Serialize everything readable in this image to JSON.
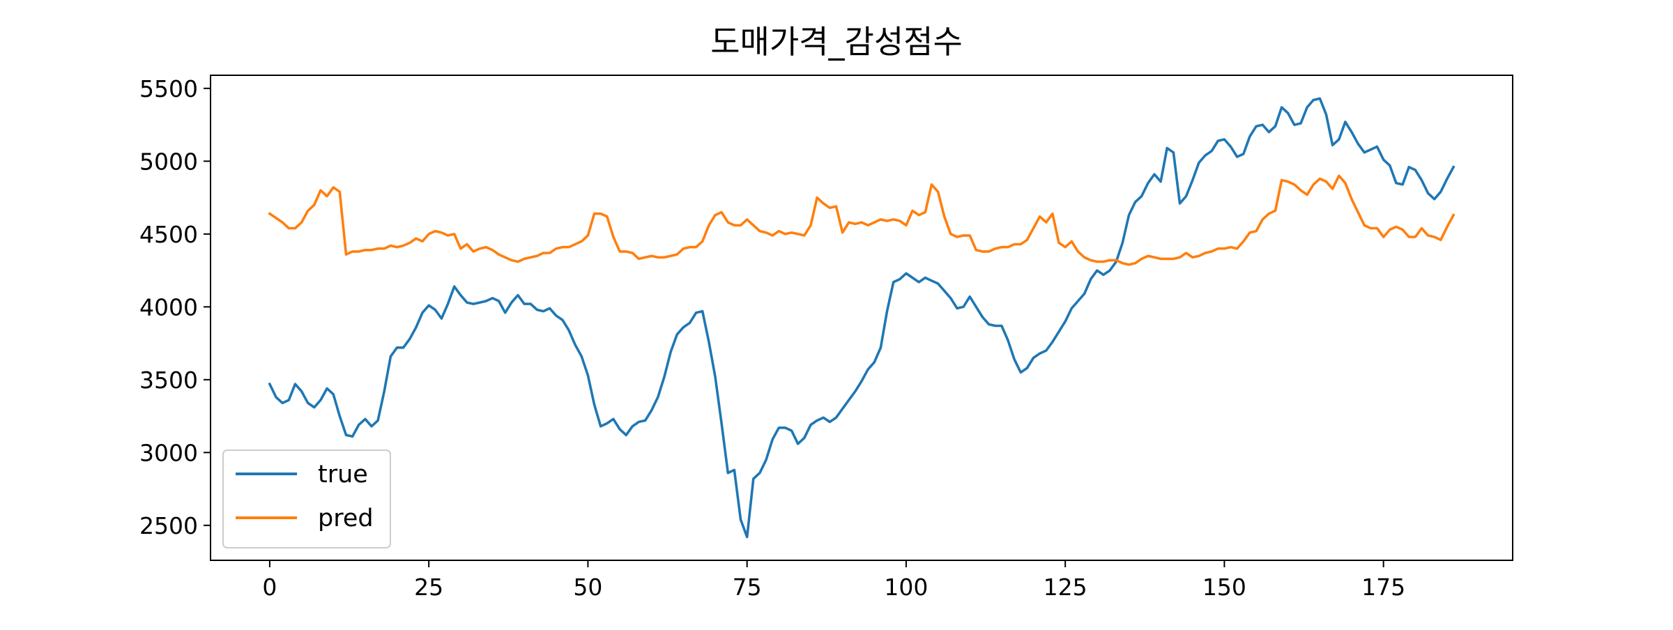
{
  "chart_data": {
    "type": "line",
    "title": "도매가격_감성점수",
    "xlabel": "",
    "ylabel": "",
    "xlim": [
      -9.3,
      195.3
    ],
    "ylim": [
      2260,
      5590
    ],
    "xticks": [
      0,
      25,
      50,
      75,
      100,
      125,
      150,
      175
    ],
    "yticks": [
      2500,
      3000,
      3500,
      4000,
      4500,
      5000,
      5500
    ],
    "grid": false,
    "legend": "lower left",
    "series": [
      {
        "name": "true",
        "color": "#1f77b4",
        "x": [
          0,
          1,
          2,
          3,
          4,
          5,
          6,
          7,
          8,
          9,
          10,
          11,
          12,
          13,
          14,
          15,
          16,
          17,
          18,
          19,
          20,
          21,
          22,
          23,
          24,
          25,
          26,
          27,
          28,
          29,
          30,
          31,
          32,
          33,
          34,
          35,
          36,
          37,
          38,
          39,
          40,
          41,
          42,
          43,
          44,
          45,
          46,
          47,
          48,
          49,
          50,
          51,
          52,
          53,
          54,
          55,
          56,
          57,
          58,
          59,
          60,
          61,
          62,
          63,
          64,
          65,
          66,
          67,
          68,
          69,
          70,
          71,
          72,
          73,
          74,
          75,
          76,
          77,
          78,
          79,
          80,
          81,
          82,
          83,
          84,
          85,
          86,
          87,
          88,
          89,
          90,
          91,
          92,
          93,
          94,
          95,
          96,
          97,
          98,
          99,
          100,
          101,
          102,
          103,
          104,
          105,
          106,
          107,
          108,
          109,
          110,
          111,
          112,
          113,
          114,
          115,
          116,
          117,
          118,
          119,
          120,
          121,
          122,
          123,
          124,
          125,
          126,
          127,
          128,
          129,
          130,
          131,
          132,
          133,
          134,
          135,
          136,
          137,
          138,
          139,
          140,
          141,
          142,
          143,
          144,
          145,
          146,
          147,
          148,
          149,
          150,
          151,
          152,
          153,
          154,
          155,
          156,
          157,
          158,
          159,
          160,
          161,
          162,
          163,
          164,
          165,
          166,
          167,
          168,
          169,
          170,
          171,
          172,
          173,
          174,
          175,
          176,
          177,
          178,
          179,
          180,
          181,
          182,
          183,
          184,
          185,
          186
        ],
        "values": [
          3470,
          3380,
          3340,
          3360,
          3470,
          3420,
          3340,
          3310,
          3360,
          3440,
          3400,
          3250,
          3120,
          3110,
          3190,
          3230,
          3180,
          3220,
          3420,
          3660,
          3720,
          3720,
          3780,
          3860,
          3960,
          4010,
          3980,
          3920,
          4020,
          4140,
          4080,
          4030,
          4020,
          4030,
          4040,
          4060,
          4040,
          3960,
          4030,
          4080,
          4020,
          4020,
          3980,
          3970,
          3990,
          3940,
          3910,
          3840,
          3740,
          3660,
          3530,
          3330,
          3180,
          3200,
          3230,
          3160,
          3120,
          3180,
          3210,
          3220,
          3290,
          3380,
          3520,
          3690,
          3810,
          3860,
          3890,
          3960,
          3970,
          3760,
          3520,
          3200,
          2860,
          2880,
          2540,
          2420,
          2820,
          2860,
          2950,
          3090,
          3170,
          3170,
          3150,
          3060,
          3100,
          3190,
          3220,
          3240,
          3210,
          3240,
          3300,
          3360,
          3420,
          3490,
          3570,
          3620,
          3720,
          3970,
          4170,
          4190,
          4230,
          4200,
          4170,
          4200,
          4180,
          4160,
          4110,
          4060,
          3990,
          4000,
          4070,
          4000,
          3930,
          3880,
          3870,
          3870,
          3770,
          3640,
          3550,
          3580,
          3650,
          3680,
          3700,
          3760,
          3830,
          3900,
          3990,
          4040,
          4090,
          4190,
          4250,
          4220,
          4250,
          4310,
          4440,
          4630,
          4720,
          4760,
          4850,
          4910,
          4860,
          5090,
          5060,
          4710,
          4760,
          4870,
          4990,
          5040,
          5070,
          5140,
          5150,
          5100,
          5030,
          5050,
          5170,
          5240,
          5250,
          5200,
          5240,
          5370,
          5330,
          5250,
          5260,
          5370,
          5420,
          5430,
          5320,
          5110,
          5150,
          5270,
          5200,
          5120,
          5060,
          5080,
          5100,
          5010,
          4970,
          4850,
          4840,
          4960,
          4940,
          4870,
          4780,
          4740,
          4790,
          4880,
          4960
        ]
      },
      {
        "name": "pred",
        "color": "#ff7f0e",
        "x": [
          0,
          1,
          2,
          3,
          4,
          5,
          6,
          7,
          8,
          9,
          10,
          11,
          12,
          13,
          14,
          15,
          16,
          17,
          18,
          19,
          20,
          21,
          22,
          23,
          24,
          25,
          26,
          27,
          28,
          29,
          30,
          31,
          32,
          33,
          34,
          35,
          36,
          37,
          38,
          39,
          40,
          41,
          42,
          43,
          44,
          45,
          46,
          47,
          48,
          49,
          50,
          51,
          52,
          53,
          54,
          55,
          56,
          57,
          58,
          59,
          60,
          61,
          62,
          63,
          64,
          65,
          66,
          67,
          68,
          69,
          70,
          71,
          72,
          73,
          74,
          75,
          76,
          77,
          78,
          79,
          80,
          81,
          82,
          83,
          84,
          85,
          86,
          87,
          88,
          89,
          90,
          91,
          92,
          93,
          94,
          95,
          96,
          97,
          98,
          99,
          100,
          101,
          102,
          103,
          104,
          105,
          106,
          107,
          108,
          109,
          110,
          111,
          112,
          113,
          114,
          115,
          116,
          117,
          118,
          119,
          120,
          121,
          122,
          123,
          124,
          125,
          126,
          127,
          128,
          129,
          130,
          131,
          132,
          133,
          134,
          135,
          136,
          137,
          138,
          139,
          140,
          141,
          142,
          143,
          144,
          145,
          146,
          147,
          148,
          149,
          150,
          151,
          152,
          153,
          154,
          155,
          156,
          157,
          158,
          159,
          160,
          161,
          162,
          163,
          164,
          165,
          166,
          167,
          168,
          169,
          170,
          171,
          172,
          173,
          174,
          175,
          176,
          177,
          178,
          179,
          180,
          181,
          182,
          183,
          184,
          185,
          186
        ],
        "values": [
          4640,
          4610,
          4580,
          4540,
          4540,
          4580,
          4660,
          4700,
          4800,
          4760,
          4820,
          4790,
          4360,
          4380,
          4380,
          4390,
          4390,
          4400,
          4400,
          4420,
          4410,
          4420,
          4440,
          4470,
          4450,
          4500,
          4520,
          4510,
          4490,
          4500,
          4400,
          4430,
          4380,
          4400,
          4410,
          4390,
          4360,
          4340,
          4320,
          4310,
          4330,
          4340,
          4350,
          4370,
          4370,
          4400,
          4410,
          4410,
          4430,
          4450,
          4490,
          4640,
          4640,
          4620,
          4480,
          4380,
          4380,
          4370,
          4330,
          4340,
          4350,
          4340,
          4340,
          4350,
          4360,
          4400,
          4410,
          4410,
          4450,
          4560,
          4630,
          4650,
          4580,
          4560,
          4560,
          4600,
          4560,
          4520,
          4510,
          4490,
          4520,
          4500,
          4510,
          4500,
          4490,
          4560,
          4750,
          4710,
          4680,
          4690,
          4510,
          4580,
          4570,
          4580,
          4560,
          4580,
          4600,
          4590,
          4600,
          4590,
          4560,
          4660,
          4630,
          4650,
          4840,
          4790,
          4620,
          4500,
          4480,
          4490,
          4490,
          4390,
          4380,
          4380,
          4400,
          4410,
          4410,
          4430,
          4430,
          4460,
          4540,
          4620,
          4580,
          4640,
          4440,
          4410,
          4450,
          4380,
          4340,
          4320,
          4310,
          4310,
          4320,
          4320,
          4300,
          4290,
          4300,
          4330,
          4350,
          4340,
          4330,
          4330,
          4330,
          4340,
          4370,
          4340,
          4350,
          4370,
          4380,
          4400,
          4400,
          4410,
          4400,
          4450,
          4510,
          4520,
          4600,
          4640,
          4660,
          4870,
          4860,
          4840,
          4800,
          4770,
          4840,
          4880,
          4860,
          4810,
          4900,
          4850,
          4740,
          4650,
          4560,
          4540,
          4540,
          4480,
          4530,
          4550,
          4530,
          4480,
          4480,
          4540,
          4490,
          4480,
          4460,
          4550,
          4630
        ]
      }
    ]
  }
}
